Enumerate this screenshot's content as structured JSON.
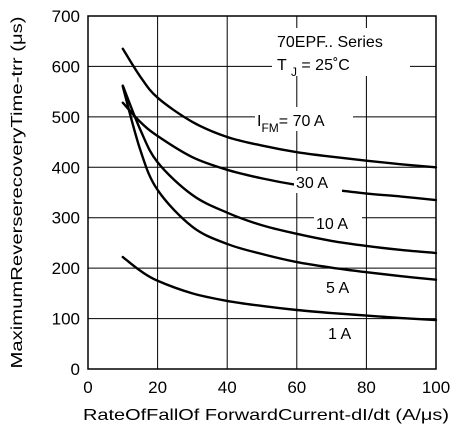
{
  "chart_data": {
    "type": "line",
    "xlabel": "RateOfFallOf ForwardCurrent-dI/dt (A/μs)",
    "ylabel": "MaximumReverserecoveryTime-trr (μs)",
    "xlim": [
      0,
      100
    ],
    "ylim": [
      0,
      700
    ],
    "x_ticks": [
      0,
      20,
      40,
      60,
      80,
      100
    ],
    "y_ticks": [
      0,
      100,
      200,
      300,
      400,
      500,
      600,
      700
    ],
    "grid": true,
    "annotation": {
      "series_name": "70EPF.. Series",
      "tj_symbol": "T",
      "tj_subscript": "J",
      "tj_value": "= 25˚C"
    },
    "series": [
      {
        "name": "I FM= 70 A",
        "label_main": "I",
        "label_sub": "FM",
        "label_tail": "= 70 A",
        "x": [
          10,
          15,
          20,
          30,
          40,
          50,
          60,
          70,
          80,
          90,
          100
        ],
        "y": [
          635,
          580,
          538,
          490,
          460,
          443,
          430,
          421,
          413,
          406,
          400
        ]
      },
      {
        "name": "30 A",
        "label_main": "30 A",
        "x": [
          10,
          15,
          20,
          30,
          40,
          50,
          60,
          70,
          80,
          90,
          100
        ],
        "y": [
          528,
          490,
          462,
          420,
          395,
          378,
          365,
          356,
          348,
          342,
          335
        ]
      },
      {
        "name": "10 A",
        "label_main": "10 A",
        "x": [
          10,
          15,
          20,
          30,
          40,
          50,
          60,
          70,
          80,
          90,
          100
        ],
        "y": [
          562,
          475,
          410,
          345,
          310,
          285,
          268,
          254,
          244,
          236,
          230
        ]
      },
      {
        "name": "5 A",
        "label_main": "5 A",
        "x": [
          10,
          15,
          20,
          30,
          40,
          50,
          60,
          70,
          80,
          90,
          100
        ],
        "y": [
          560,
          435,
          355,
          282,
          248,
          228,
          212,
          201,
          192,
          184,
          177
        ]
      },
      {
        "name": "1 A",
        "label_main": "1 A",
        "x": [
          10,
          15,
          20,
          30,
          40,
          50,
          60,
          70,
          80,
          90,
          100
        ],
        "y": [
          222,
          195,
          175,
          150,
          135,
          125,
          117,
          111,
          106,
          101,
          97
        ]
      }
    ]
  }
}
